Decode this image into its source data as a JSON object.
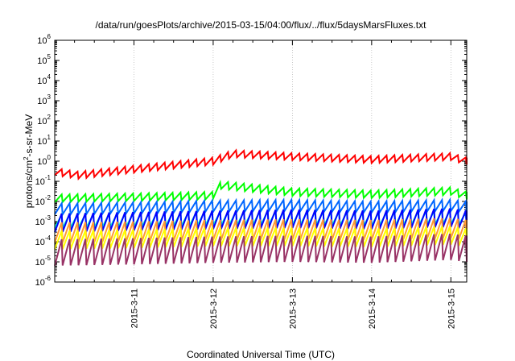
{
  "chart_data": {
    "type": "line",
    "title": "/data/run/goesPlots/archive/2015-03-15/04:00/flux/../flux/5daysMarsFluxes.txt",
    "xlabel": "Coordinated Universal Time (UTC)",
    "ylabel": {
      "pre": "protons/cm",
      "sup": "2",
      "post": "-s-sr-MeV"
    },
    "yscale": "log",
    "ylim_exp": [
      -6,
      6
    ],
    "ytick_base": "10",
    "yticks_exp": [
      "-6",
      "-5",
      "-4",
      "-3",
      "-2",
      "-1",
      "0",
      "1",
      "2",
      "3",
      "4",
      "5",
      "6"
    ],
    "xlim": [
      0,
      5.2
    ],
    "xticks": [
      {
        "label": "2015-3-11",
        "x": 1.0
      },
      {
        "label": "2015-3-12",
        "x": 2.0
      },
      {
        "label": "2015-3-13",
        "x": 3.0
      },
      {
        "label": "2015-3-14",
        "x": 4.0
      },
      {
        "label": "2015-3-15",
        "x": 5.0
      }
    ],
    "grid": "x-only",
    "sawtooth_period": 0.1,
    "series": [
      {
        "color": "#ff0000",
        "trend": [
          [
            0,
            0.45
          ],
          [
            0.3,
            0.3
          ],
          [
            1.0,
            0.6
          ],
          [
            2.0,
            1.5
          ],
          [
            2.25,
            3.5
          ],
          [
            3.0,
            2.5
          ],
          [
            4.0,
            1.8
          ],
          [
            5.0,
            2.5
          ],
          [
            5.2,
            1.5
          ]
        ],
        "drop": 0.45
      },
      {
        "color": "#00ff00",
        "trend": [
          [
            0,
            0.022
          ],
          [
            1.0,
            0.025
          ],
          [
            1.99,
            0.03
          ],
          [
            2.1,
            0.1
          ],
          [
            2.5,
            0.07
          ],
          [
            3.0,
            0.045
          ],
          [
            4.0,
            0.035
          ],
          [
            5.0,
            0.05
          ],
          [
            5.2,
            0.03
          ]
        ],
        "drop": 0.42
      },
      {
        "color": "#0066ff",
        "trend": [
          [
            0,
            0.008
          ],
          [
            1.0,
            0.009
          ],
          [
            2.0,
            0.011
          ],
          [
            3.0,
            0.012
          ],
          [
            4.0,
            0.01
          ],
          [
            5.0,
            0.012
          ],
          [
            5.2,
            0.01
          ]
        ],
        "drop": 0.28
      },
      {
        "color": "#00ffcc",
        "trend": [
          [
            0,
            0.0022
          ],
          [
            1.0,
            0.0025
          ],
          [
            2.0,
            0.003
          ],
          [
            3.0,
            0.0032
          ],
          [
            4.0,
            0.0028
          ],
          [
            5.0,
            0.0035
          ],
          [
            5.2,
            0.0028
          ]
        ],
        "drop": 0.22
      },
      {
        "color": "#0000ff",
        "trend": [
          [
            0,
            0.0025
          ],
          [
            1.0,
            0.003
          ],
          [
            2.0,
            0.0035
          ],
          [
            3.0,
            0.004
          ],
          [
            4.0,
            0.0035
          ],
          [
            5.0,
            0.0045
          ],
          [
            5.2,
            0.0035
          ]
        ],
        "drop": 0.12
      },
      {
        "color": "#ff9933",
        "trend": [
          [
            0,
            0.0009
          ],
          [
            1.0,
            0.001
          ],
          [
            2.0,
            0.0012
          ],
          [
            3.0,
            0.0013
          ],
          [
            4.0,
            0.0012
          ],
          [
            5.0,
            0.0015
          ],
          [
            5.2,
            0.0012
          ]
        ],
        "drop": 0.1
      },
      {
        "color": "#ffff00",
        "trend": [
          [
            0,
            0.00035
          ],
          [
            1.0,
            0.0004
          ],
          [
            2.0,
            0.0005
          ],
          [
            3.0,
            0.0005
          ],
          [
            4.0,
            0.00045
          ],
          [
            5.0,
            0.0006
          ],
          [
            5.2,
            0.00045
          ]
        ],
        "drop": 0.12
      },
      {
        "color": "#993366",
        "trend": [
          [
            0,
            0.00013
          ],
          [
            1.0,
            0.00015
          ],
          [
            2.0,
            0.00018
          ],
          [
            3.0,
            0.0002
          ],
          [
            4.0,
            0.00018
          ],
          [
            5.0,
            0.00025
          ],
          [
            5.2,
            0.0002
          ]
        ],
        "drop": 0.05
      }
    ]
  }
}
